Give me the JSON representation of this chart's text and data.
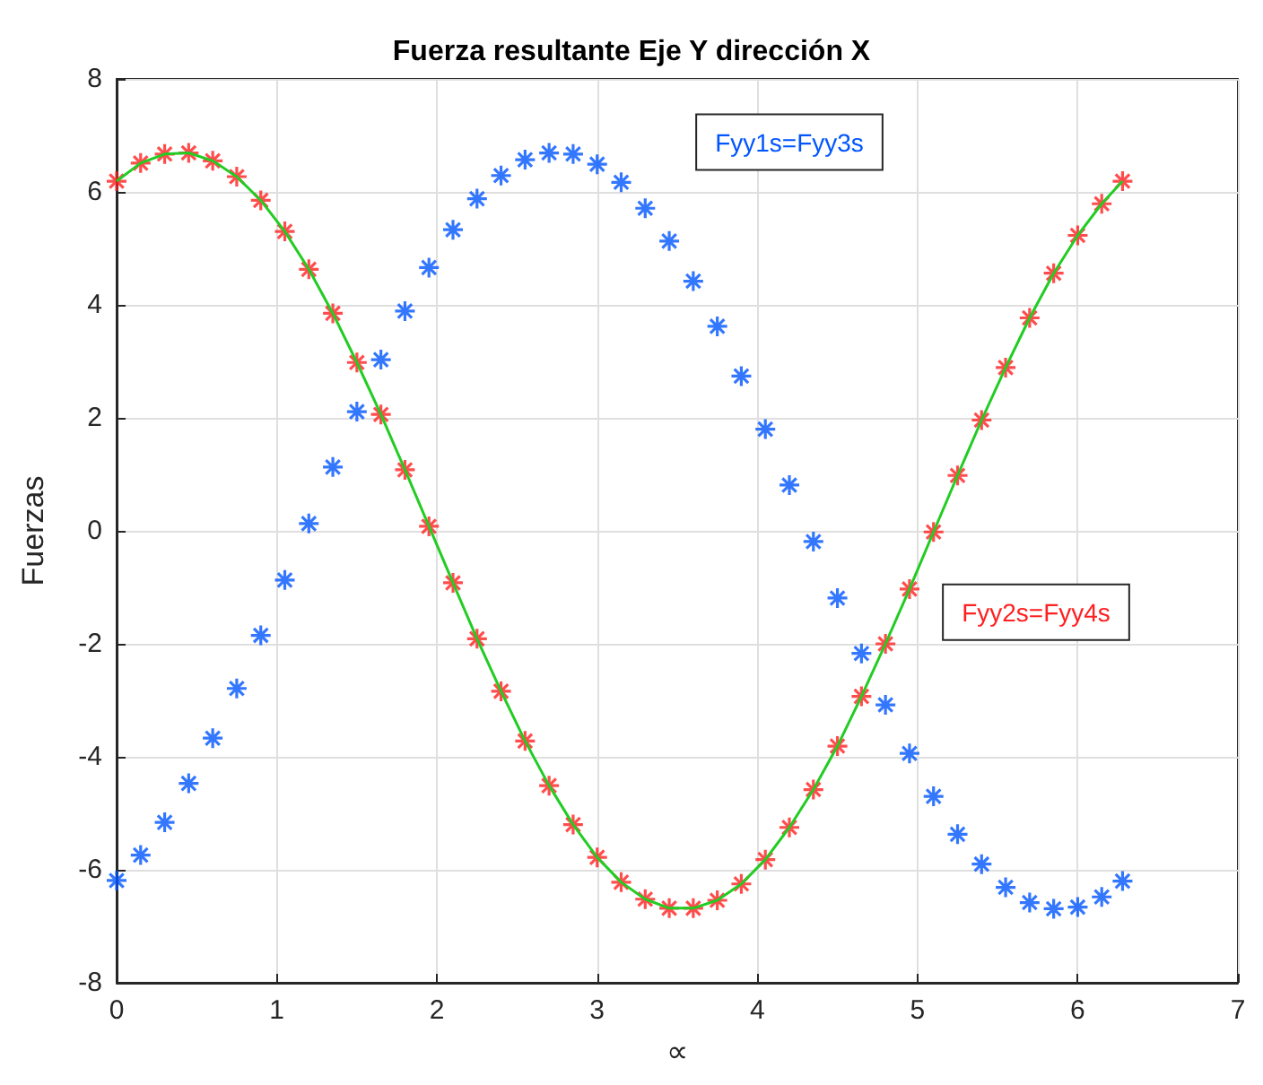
{
  "chart_data": {
    "type": "line",
    "title": "Fuerza resultante Eje Y dirección X",
    "xlabel": "∝",
    "ylabel": "Fuerzas",
    "x": [
      0,
      0.15,
      0.3,
      0.45,
      0.6,
      0.75,
      0.9,
      1.05,
      1.2,
      1.35,
      1.5,
      1.65,
      1.8,
      1.95,
      2.1,
      2.25,
      2.4,
      2.55,
      2.7,
      2.85,
      3.0,
      3.15,
      3.3,
      3.45,
      3.6,
      3.75,
      3.9,
      4.05,
      4.2,
      4.35,
      4.5,
      4.65,
      4.8,
      4.95,
      5.1,
      5.25,
      5.4,
      5.55,
      5.7,
      5.85,
      6.0,
      6.15,
      6.28
    ],
    "series": [
      {
        "type": "scatter",
        "color": "#0055ff",
        "marker": "cross",
        "values": [
          -6.19,
          -5.74,
          -5.16,
          -4.47,
          -3.67,
          -2.79,
          -1.85,
          -0.87,
          0.13,
          1.13,
          2.11,
          3.03,
          3.89,
          4.66,
          5.33,
          5.88,
          6.29,
          6.57,
          6.69,
          6.67,
          6.49,
          6.17,
          5.71,
          5.13,
          4.42,
          3.62,
          2.74,
          1.8,
          0.81,
          -0.19,
          -1.19,
          -2.17,
          -3.08,
          -3.94,
          -4.7,
          -5.37,
          -5.9,
          -6.31,
          -6.58,
          -6.69,
          -6.66,
          -6.48,
          -6.2
        ]
      },
      {
        "type": "scatter",
        "color": "#ff2020",
        "marker": "cross",
        "values": [
          6.19,
          6.51,
          6.67,
          6.69,
          6.55,
          6.27,
          5.85,
          5.3,
          4.63,
          3.85,
          2.98,
          2.06,
          1.08,
          0.08,
          -0.92,
          -1.91,
          -2.84,
          -3.72,
          -4.51,
          -5.2,
          -5.78,
          -6.22,
          -6.52,
          -6.68,
          -6.68,
          -6.54,
          -6.25,
          -5.82,
          -5.25,
          -4.58,
          -3.81,
          -2.93,
          -2.0,
          -1.03,
          -0.02,
          0.98,
          1.96,
          2.89,
          3.77,
          4.56,
          5.23,
          5.79,
          6.19
        ]
      },
      {
        "color": "#22cc22",
        "marker": "none",
        "line_style": "solid",
        "values": [
          6.19,
          6.51,
          6.67,
          6.69,
          6.55,
          6.27,
          5.85,
          5.3,
          4.63,
          3.85,
          2.98,
          2.06,
          1.08,
          0.08,
          -0.92,
          -1.91,
          -2.84,
          -3.72,
          -4.51,
          -5.2,
          -5.78,
          -6.22,
          -6.52,
          -6.68,
          -6.68,
          -6.54,
          -6.25,
          -5.82,
          -5.25,
          -4.58,
          -3.81,
          -2.93,
          -2.0,
          -1.03,
          -0.02,
          0.98,
          1.96,
          2.89,
          3.77,
          4.56,
          5.23,
          5.79,
          6.19
        ]
      }
    ],
    "annotations": [
      "Fyy1s=Fyy3s",
      "Fyy2s=Fyy4s"
    ],
    "xlim": [
      0,
      7
    ],
    "xticks": [
      0,
      1,
      2,
      3,
      4,
      5,
      6,
      7
    ],
    "ylim": [
      -8,
      8
    ],
    "yticks": [
      -8,
      -6,
      -4,
      -2,
      0,
      2,
      4,
      6,
      8
    ],
    "grid": true
  }
}
